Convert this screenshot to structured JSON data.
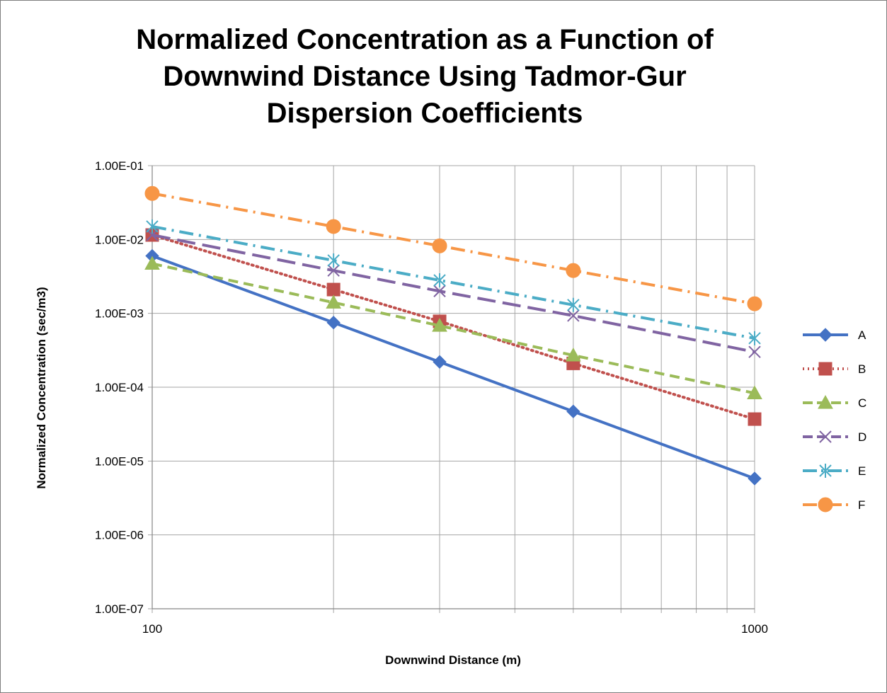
{
  "chart_data": {
    "type": "line",
    "title": [
      "Normalized Concentration as a Function of",
      "Downwind Distance Using Tadmor-Gur",
      "Dispersion Coefficients"
    ],
    "xlabel": "Downwind Distance (m)",
    "ylabel": "Normalized Concentration (sec/m3)",
    "x_scale": "log",
    "y_scale": "log",
    "xlim": [
      100,
      1000
    ],
    "ylim": [
      1e-07,
      0.1
    ],
    "x_ticks": [
      "100",
      "1000"
    ],
    "x_tick_values": [
      100,
      1000
    ],
    "y_ticks": [
      "1.00E-07",
      "1.00E-06",
      "1.00E-05",
      "1.00E-04",
      "1.00E-03",
      "1.00E-02",
      "1.00E-01"
    ],
    "y_tick_values": [
      1e-07,
      1e-06,
      1e-05,
      0.0001,
      0.001,
      0.01,
      0.1
    ],
    "grid": true,
    "legend_position": "right",
    "x": [
      100,
      200,
      300,
      500,
      1000
    ],
    "series": [
      {
        "name": "A",
        "values": [
          0.006,
          0.00075,
          0.00022,
          4.7e-05,
          5.8e-06
        ],
        "color": "#4472c4",
        "marker": "diamond",
        "dash": "solid"
      },
      {
        "name": "B",
        "values": [
          0.0115,
          0.0021,
          0.00078,
          0.00021,
          3.7e-05
        ],
        "color": "#c0504d",
        "marker": "square",
        "dash": "dot"
      },
      {
        "name": "C",
        "values": [
          0.0047,
          0.0014,
          0.00068,
          0.00027,
          8.3e-05
        ],
        "color": "#9bbb59",
        "marker": "triangle",
        "dash": "dash"
      },
      {
        "name": "D",
        "values": [
          0.0115,
          0.0038,
          0.002,
          0.00093,
          0.0003
        ],
        "color": "#8064a2",
        "marker": "x",
        "dash": "longdash"
      },
      {
        "name": "E",
        "values": [
          0.015,
          0.0052,
          0.0028,
          0.0013,
          0.00046
        ],
        "color": "#4bacc6",
        "marker": "star",
        "dash": "dashdot"
      },
      {
        "name": "F",
        "values": [
          0.042,
          0.015,
          0.0082,
          0.0038,
          0.00135
        ],
        "color": "#f79646",
        "marker": "circle",
        "dash": "dashdot"
      }
    ]
  }
}
